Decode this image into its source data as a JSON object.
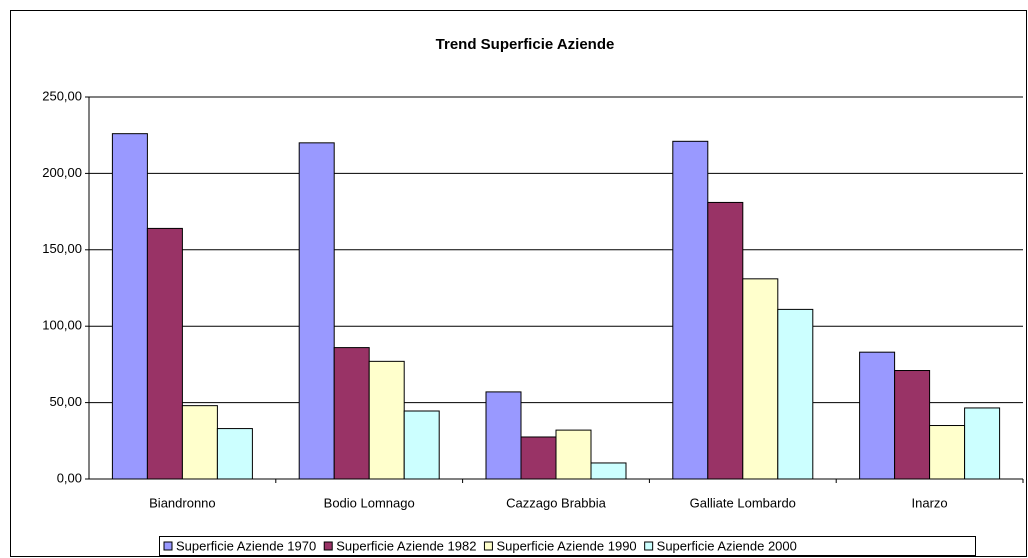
{
  "chart_data": {
    "type": "bar",
    "title": "Trend Superficie Aziende",
    "categories": [
      "Biandronno",
      "Bodio Lomnago",
      "Cazzago Brabbia",
      "Galliate Lombardo",
      "Inarzo"
    ],
    "series": [
      {
        "name": "Superficie Aziende 1970",
        "color": "#9999ff",
        "values": [
          226,
          220,
          57,
          221,
          83
        ]
      },
      {
        "name": "Superficie Aziende 1982",
        "color": "#993366",
        "values": [
          164,
          86,
          27.5,
          181,
          71
        ]
      },
      {
        "name": "Superficie Aziende 1990",
        "color": "#ffffcc",
        "values": [
          48,
          77,
          32,
          131,
          35
        ]
      },
      {
        "name": "Superficie Aziende 2000",
        "color": "#ccffff",
        "values": [
          33,
          44.5,
          10.5,
          111,
          46.5
        ]
      }
    ],
    "ylim": [
      0,
      250
    ],
    "yticks": [
      {
        "value": 0,
        "label": "0,00"
      },
      {
        "value": 50,
        "label": "50,00"
      },
      {
        "value": 100,
        "label": "100,00"
      },
      {
        "value": 150,
        "label": "150,00"
      },
      {
        "value": 200,
        "label": "200,00"
      },
      {
        "value": 250,
        "label": "250,00"
      }
    ],
    "grid": true,
    "legend": "bottom"
  }
}
